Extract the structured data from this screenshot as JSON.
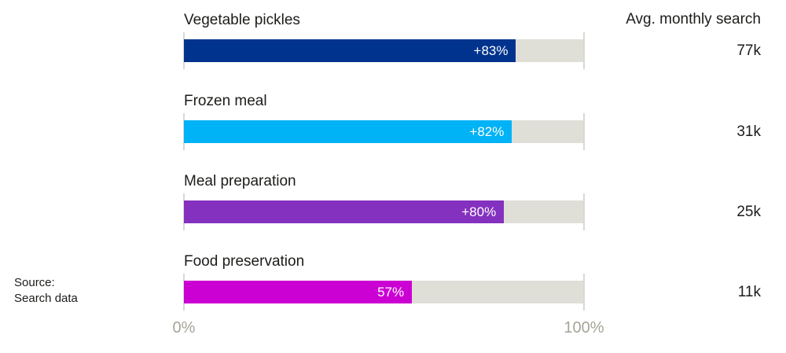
{
  "chart_data": {
    "type": "bar",
    "orientation": "horizontal",
    "title": "",
    "xlabel": "",
    "ylabel": "",
    "xlim": [
      0,
      100
    ],
    "x_tick_labels": [
      "0%",
      "100%"
    ],
    "grid": false,
    "legend": false,
    "right_column_header": "Avg. monthly search",
    "categories": [
      "Vegetable pickles",
      "Frozen meal",
      "Meal preparation",
      "Food preservation"
    ],
    "values": [
      83,
      82,
      80,
      57
    ],
    "rows": [
      {
        "label": "Vegetable pickles",
        "value": 83,
        "value_label": "+83%",
        "avg_monthly_search": "77k",
        "color": "#00338d"
      },
      {
        "label": "Frozen meal",
        "value": 82,
        "value_label": "+82%",
        "avg_monthly_search": "31k",
        "color": "#00b2f6"
      },
      {
        "label": "Meal preparation",
        "value": 80,
        "value_label": "+80%",
        "avg_monthly_search": "25k",
        "color": "#8431bf"
      },
      {
        "label": "Food preservation",
        "value": 57,
        "value_label": "57%",
        "avg_monthly_search": "11k",
        "color": "#cb00d3"
      }
    ],
    "colors": {
      "track": "#dfdfd8",
      "tick": "#d9d9d2",
      "axis_label": "#a5a496",
      "text": "#1c1c1a",
      "bar_value_text": "#ffffff"
    },
    "source": {
      "line1": "Source:",
      "line2": "Search data"
    }
  }
}
